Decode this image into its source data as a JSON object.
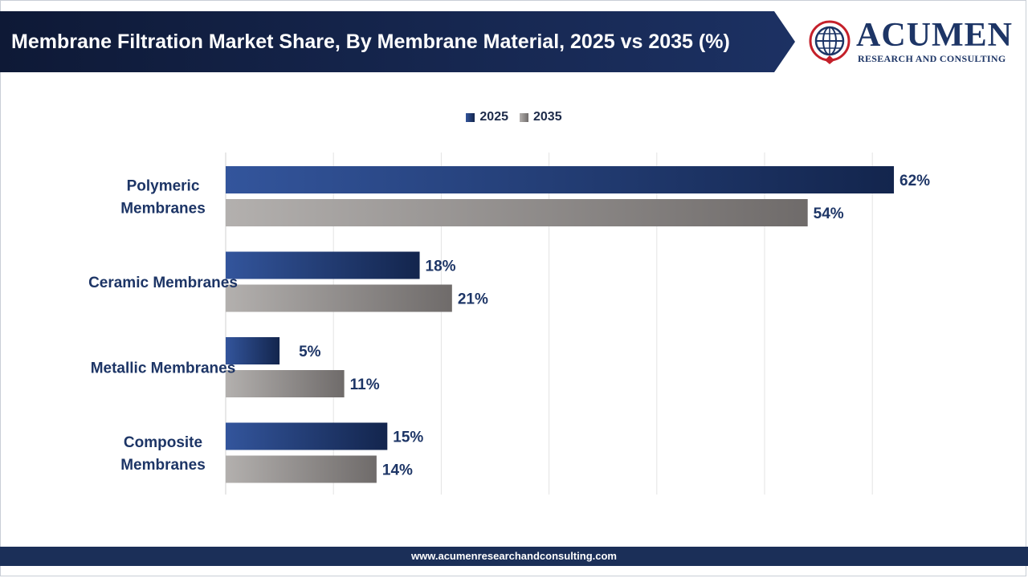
{
  "header": {
    "title": "Membrane Filtration Market Share, By Membrane Material, 2025 vs 2035 (%)"
  },
  "logo": {
    "name": "ACUMEN",
    "tagline": "RESEARCH AND CONSULTING"
  },
  "footer": {
    "url": "www.acumenresearchandconsulting.com"
  },
  "colors": {
    "header_bg": "#101c3c",
    "series_2025_start": "#33559c",
    "series_2025_end": "#13254d",
    "series_2035_start": "#b3b0ae",
    "series_2035_end": "#6f6b6a",
    "label_text": "#1d3566",
    "gridline": "#e3e3e3",
    "footer_bg": "#1b2f58"
  },
  "chart_data": {
    "type": "bar",
    "orientation": "horizontal",
    "categories": [
      "Polymeric Membranes",
      "Ceramic Membranes",
      "Metallic Membranes",
      "Composite Membranes"
    ],
    "category_label_lines": [
      [
        "Polymeric",
        "Membranes"
      ],
      [
        "Ceramic Membranes"
      ],
      [
        "Metallic Membranes"
      ],
      [
        "Composite",
        "Membranes"
      ]
    ],
    "series": [
      {
        "name": "2025",
        "values": [
          62,
          18,
          5,
          15
        ],
        "labels": [
          "62%",
          "18%",
          "5%",
          "15%"
        ]
      },
      {
        "name": "2035",
        "values": [
          54,
          21,
          11,
          14
        ],
        "labels": [
          "54%",
          "21%",
          "11%",
          "14%"
        ]
      }
    ],
    "xlim": [
      0,
      60
    ],
    "grid": true,
    "legend_position": "top-center"
  }
}
